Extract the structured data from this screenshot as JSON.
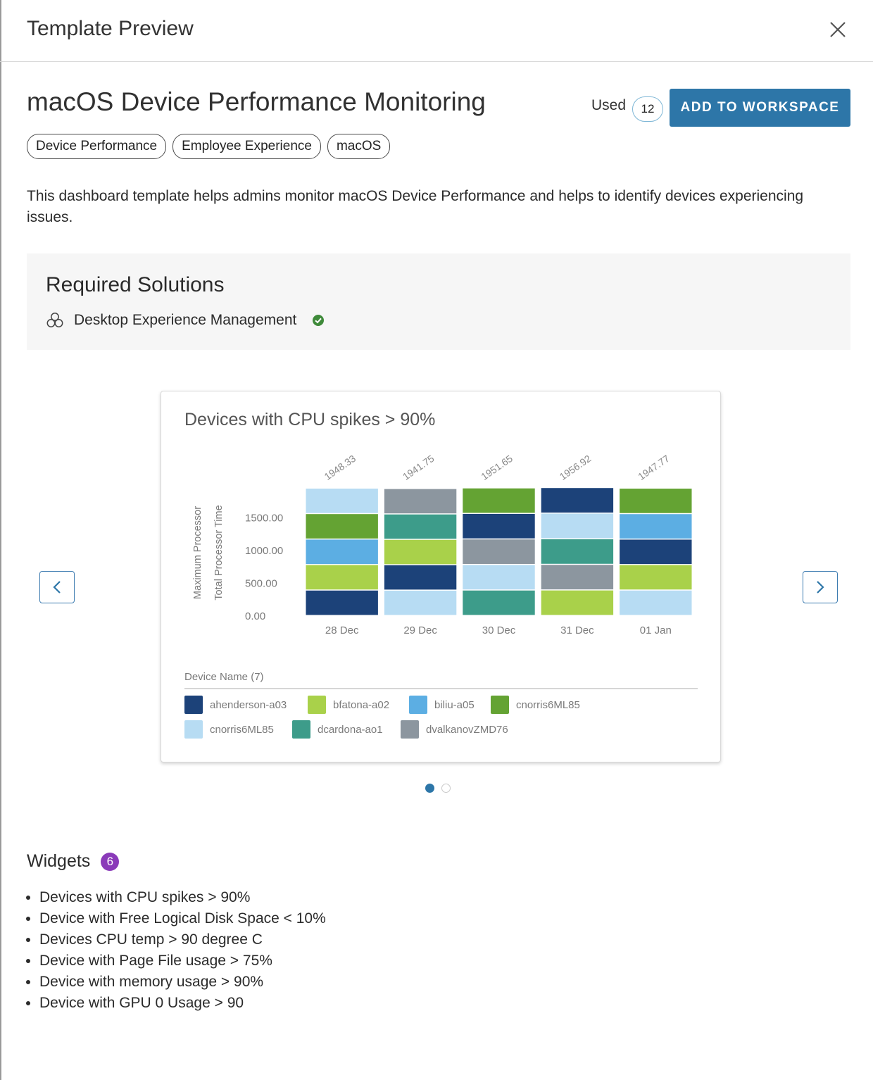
{
  "dialog": {
    "title": "Template Preview",
    "close_icon": "close-icon"
  },
  "template": {
    "title": "macOS Device Performance Monitoring",
    "used_label": "Used",
    "used_count": "12",
    "add_button": "ADD TO WORKSPACE",
    "tags": [
      "Device Performance",
      "Employee Experience",
      "macOS"
    ],
    "description": "This dashboard template helps admins monitor macOS Device Performance and helps to identify devices experiencing issues."
  },
  "required_solutions": {
    "title": "Required Solutions",
    "items": [
      {
        "label": "Desktop Experience Management",
        "icon": "hexagon-cluster-icon",
        "status_icon": "check-circle-icon",
        "status_color": "#3f8a3a"
      }
    ]
  },
  "carousel": {
    "prev_icon": "chevron-left-icon",
    "next_icon": "chevron-right-icon",
    "active_index": 0,
    "page_count": 2
  },
  "chart_data": {
    "type": "bar",
    "stacked": true,
    "title": "Devices with CPU spikes > 90%",
    "ylabel": "Maximum Processor Total Processor Time",
    "ylabel_lines": [
      "Maximum Processor",
      "Total Processor Time"
    ],
    "legend_title": "Device Name (7)",
    "categories": [
      "28 Dec",
      "29 Dec",
      "30 Dec",
      "31 Dec",
      "01 Jan"
    ],
    "totals": [
      "1948.33",
      "1941.75",
      "1951.65",
      "1956.92",
      "1947.77"
    ],
    "total_values": [
      1948.33,
      1941.75,
      1951.65,
      1956.92,
      1947.77
    ],
    "y_ticks": [
      "0.00",
      "500.00",
      "1000.00",
      "1500.00"
    ],
    "ylim": [
      0,
      1948.33
    ],
    "legend": [
      {
        "name": "ahenderson-a03",
        "color": "#1c4279"
      },
      {
        "name": "bfatona-a02",
        "color": "#a9d14a"
      },
      {
        "name": "biliu-a05",
        "color": "#5caee3"
      },
      {
        "name": "cnorris6ML85",
        "color": "#64a333"
      },
      {
        "name": "cnorris6ML85",
        "color": "#b7dcf3"
      },
      {
        "name": "dcardona-ao1",
        "color": "#3d9c8a"
      },
      {
        "name": "dvalkanovZMD76",
        "color": "#8c969f"
      }
    ],
    "stacks": [
      [
        "#1c4279",
        "#a9d14a",
        "#5caee3",
        "#64a333",
        "#b7dcf3"
      ],
      [
        "#b7dcf3",
        "#1c4279",
        "#a9d14a",
        "#3d9c8a",
        "#8c969f"
      ],
      [
        "#3d9c8a",
        "#b7dcf3",
        "#8c969f",
        "#1c4279",
        "#64a333"
      ],
      [
        "#a9d14a",
        "#8c969f",
        "#3d9c8a",
        "#b7dcf3",
        "#1c4279"
      ],
      [
        "#b7dcf3",
        "#a9d14a",
        "#1c4279",
        "#5caee3",
        "#64a333"
      ]
    ]
  },
  "widgets": {
    "title": "Widgets",
    "count": "6",
    "items": [
      "Devices with CPU spikes > 90%",
      "Device with Free Logical Disk Space < 10%",
      "Devices CPU temp > 90 degree C",
      "Device with Page File usage > 75%",
      "Device with memory usage > 90%",
      "Device with GPU 0 Usage > 90"
    ]
  }
}
